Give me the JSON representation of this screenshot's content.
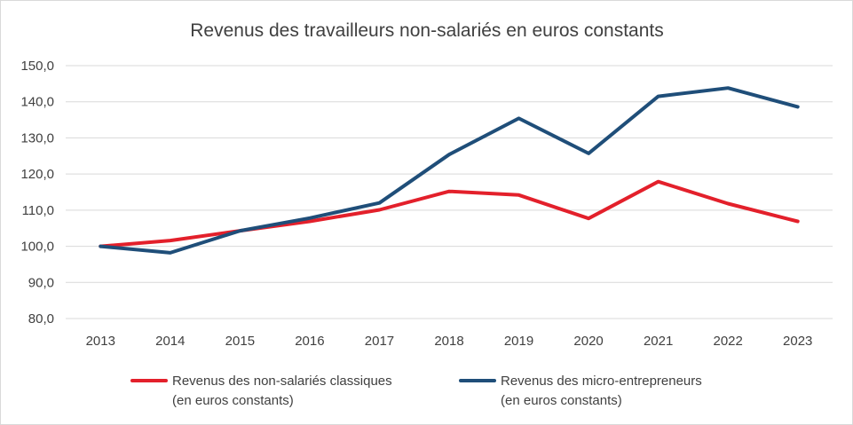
{
  "chart_data": {
    "type": "line",
    "title": "Revenus des travailleurs non-salariés en euros constants",
    "xlabel": "",
    "ylabel": "",
    "categories": [
      "2013",
      "2014",
      "2015",
      "2016",
      "2017",
      "2018",
      "2019",
      "2020",
      "2021",
      "2022",
      "2023"
    ],
    "ylim": [
      80,
      150
    ],
    "yticks": [
      "80,0",
      "90,0",
      "100,0",
      "110,0",
      "120,0",
      "130,0",
      "140,0",
      "150,0"
    ],
    "grid": true,
    "legend_position": "bottom",
    "series": [
      {
        "name": "Revenus  des non-salariés classiques",
        "name_line2": "(en euros constants)",
        "color": "#e3202b",
        "values": [
          100.0,
          101.6,
          104.3,
          106.9,
          110.1,
          115.2,
          114.2,
          107.7,
          117.9,
          111.8,
          106.9
        ]
      },
      {
        "name": "Revenus des micro-entrepreneurs",
        "name_line2": "(en euros constants)",
        "color": "#1f4e79",
        "values": [
          100.0,
          98.2,
          104.3,
          107.8,
          112.0,
          125.4,
          135.4,
          125.7,
          141.5,
          143.8,
          138.6
        ]
      }
    ]
  }
}
